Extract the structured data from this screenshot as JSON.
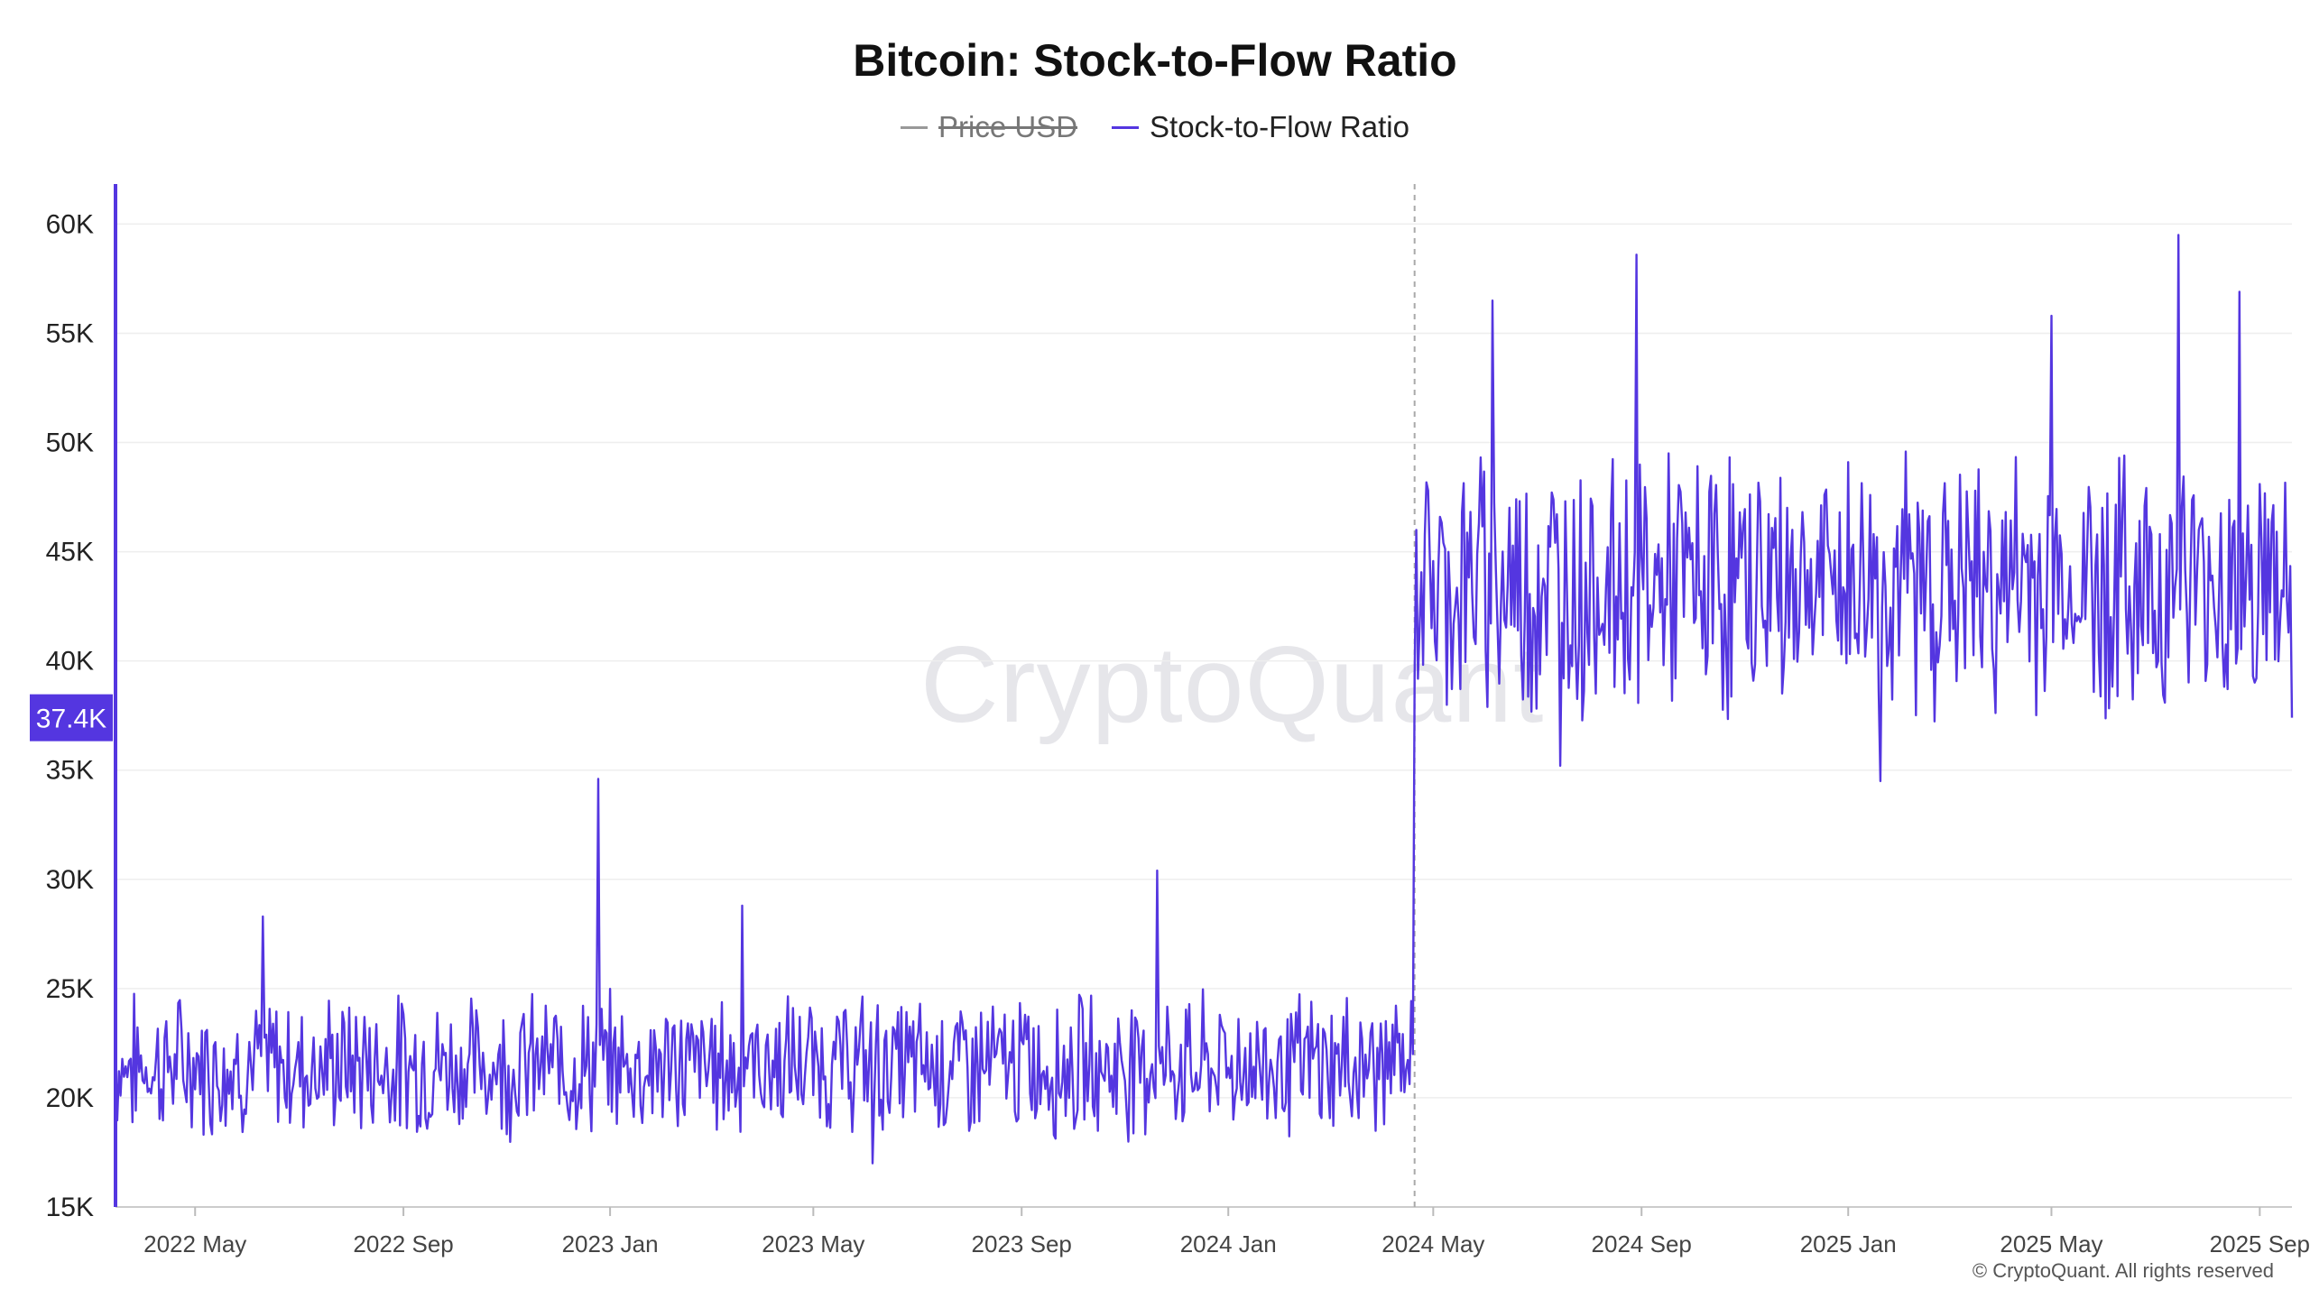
{
  "title": "Bitcoin: Stock-to-Flow Ratio",
  "legend": [
    {
      "label": "Price USD",
      "color": "#999999",
      "enabled": false
    },
    {
      "label": "Stock-to-Flow Ratio",
      "color": "#5436e0",
      "enabled": true
    }
  ],
  "watermark": "CryptoQuant",
  "copyright": "© CryptoQuant. All rights reserved",
  "current_value_label": "37.4K",
  "chart_data": {
    "type": "line",
    "series": [
      {
        "name": "Stock-to-Flow Ratio",
        "color": "#5436e0"
      }
    ],
    "x_range": [
      "2022-03-15",
      "2025-09-20"
    ],
    "ylim": [
      15000,
      62000
    ],
    "y_ticks": [
      15000,
      20000,
      25000,
      30000,
      35000,
      40000,
      45000,
      50000,
      55000,
      60000
    ],
    "y_tick_labels": [
      "15K",
      "20K",
      "25K",
      "30K",
      "35K",
      "40K",
      "45K",
      "50K",
      "55K",
      "60K"
    ],
    "x_ticks": [
      "2022-05-01",
      "2022-09-01",
      "2023-01-01",
      "2023-05-01",
      "2023-09-01",
      "2024-01-01",
      "2024-05-01",
      "2024-09-01",
      "2025-01-01",
      "2025-05-01",
      "2025-09-01"
    ],
    "x_tick_labels": [
      "2022 May",
      "2022 Sep",
      "2023 Jan",
      "2023 May",
      "2023 Sep",
      "2024 Jan",
      "2024 May",
      "2024 Sep",
      "2025 Jan",
      "2025 May",
      "2025 Sep"
    ],
    "halving_date": "2024-04-20",
    "grid": true,
    "legend_position": "top-center",
    "anchor_points": [
      {
        "date": "2022-03-15",
        "value": 22000
      },
      {
        "date": "2022-06-10",
        "value": 28300
      },
      {
        "date": "2022-12-25",
        "value": 34600
      },
      {
        "date": "2023-03-20",
        "value": 28800
      },
      {
        "date": "2023-06-05",
        "value": 17000
      },
      {
        "date": "2023-11-20",
        "value": 30400
      },
      {
        "date": "2024-04-19",
        "value": 22000
      },
      {
        "date": "2024-04-21",
        "value": 46000
      },
      {
        "date": "2024-06-05",
        "value": 56500
      },
      {
        "date": "2024-07-15",
        "value": 35200
      },
      {
        "date": "2024-08-29",
        "value": 58600
      },
      {
        "date": "2025-01-20",
        "value": 34500
      },
      {
        "date": "2025-05-01",
        "value": 55800
      },
      {
        "date": "2025-07-15",
        "value": 59500
      },
      {
        "date": "2025-08-20",
        "value": 56900
      },
      {
        "date": "2025-09-20",
        "value": 37400
      }
    ]
  }
}
